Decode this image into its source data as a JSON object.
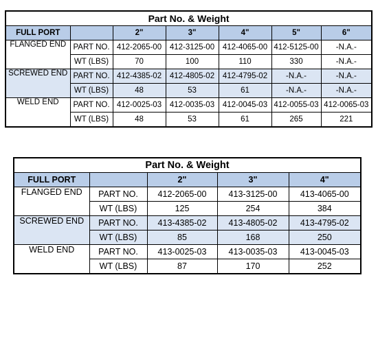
{
  "table1": {
    "title": "Part No. & Weight",
    "header": [
      "FULL PORT",
      "",
      "2\"",
      "3\"",
      "4\"",
      "5\"",
      "6\""
    ],
    "groups": [
      {
        "label": "FLANGED END",
        "rows": [
          {
            "type": "PART NO.",
            "values": [
              "412-2065-00",
              "412-3125-00",
              "412-4065-00",
              "412-5125-00",
              "-N.A.-"
            ]
          },
          {
            "type": "WT (LBS)",
            "values": [
              "70",
              "100",
              "110",
              "330",
              "-N.A.-"
            ]
          }
        ]
      },
      {
        "label": "SCREWED END",
        "rows": [
          {
            "type": "PART NO.",
            "values": [
              "412-4385-02",
              "412-4805-02",
              "412-4795-02",
              "-N.A.-",
              "-N.A.-"
            ]
          },
          {
            "type": "WT (LBS)",
            "values": [
              "48",
              "53",
              "61",
              "-N.A.-",
              "-N.A.-"
            ]
          }
        ]
      },
      {
        "label": "WELD END",
        "rows": [
          {
            "type": "PART NO.",
            "values": [
              "412-0025-03",
              "412-0035-03",
              "412-0045-03",
              "412-0055-03",
              "412-0065-03"
            ]
          },
          {
            "type": "WT (LBS)",
            "values": [
              "48",
              "53",
              "61",
              "265",
              "221"
            ]
          }
        ]
      }
    ]
  },
  "table2": {
    "title": "Part No. & Weight",
    "header": [
      "FULL PORT",
      "",
      "2\"",
      "3\"",
      "4\""
    ],
    "groups": [
      {
        "label": "FLANGED END",
        "rows": [
          {
            "type": "PART NO.",
            "values": [
              "412-2065-00",
              "413-3125-00",
              "413-4065-00"
            ]
          },
          {
            "type": "WT (LBS)",
            "values": [
              "125",
              "254",
              "384"
            ]
          }
        ]
      },
      {
        "label": "SCREWED END",
        "rows": [
          {
            "type": "PART NO.",
            "values": [
              "413-4385-02",
              "413-4805-02",
              "413-4795-02"
            ]
          },
          {
            "type": "WT (LBS)",
            "values": [
              "85",
              "168",
              "250"
            ]
          }
        ]
      },
      {
        "label": "WELD END",
        "rows": [
          {
            "type": "PART NO.",
            "values": [
              "413-0025-03",
              "413-0035-03",
              "413-0045-03"
            ]
          },
          {
            "type": "WT (LBS)",
            "values": [
              "87",
              "170",
              "252"
            ]
          }
        ]
      }
    ]
  }
}
